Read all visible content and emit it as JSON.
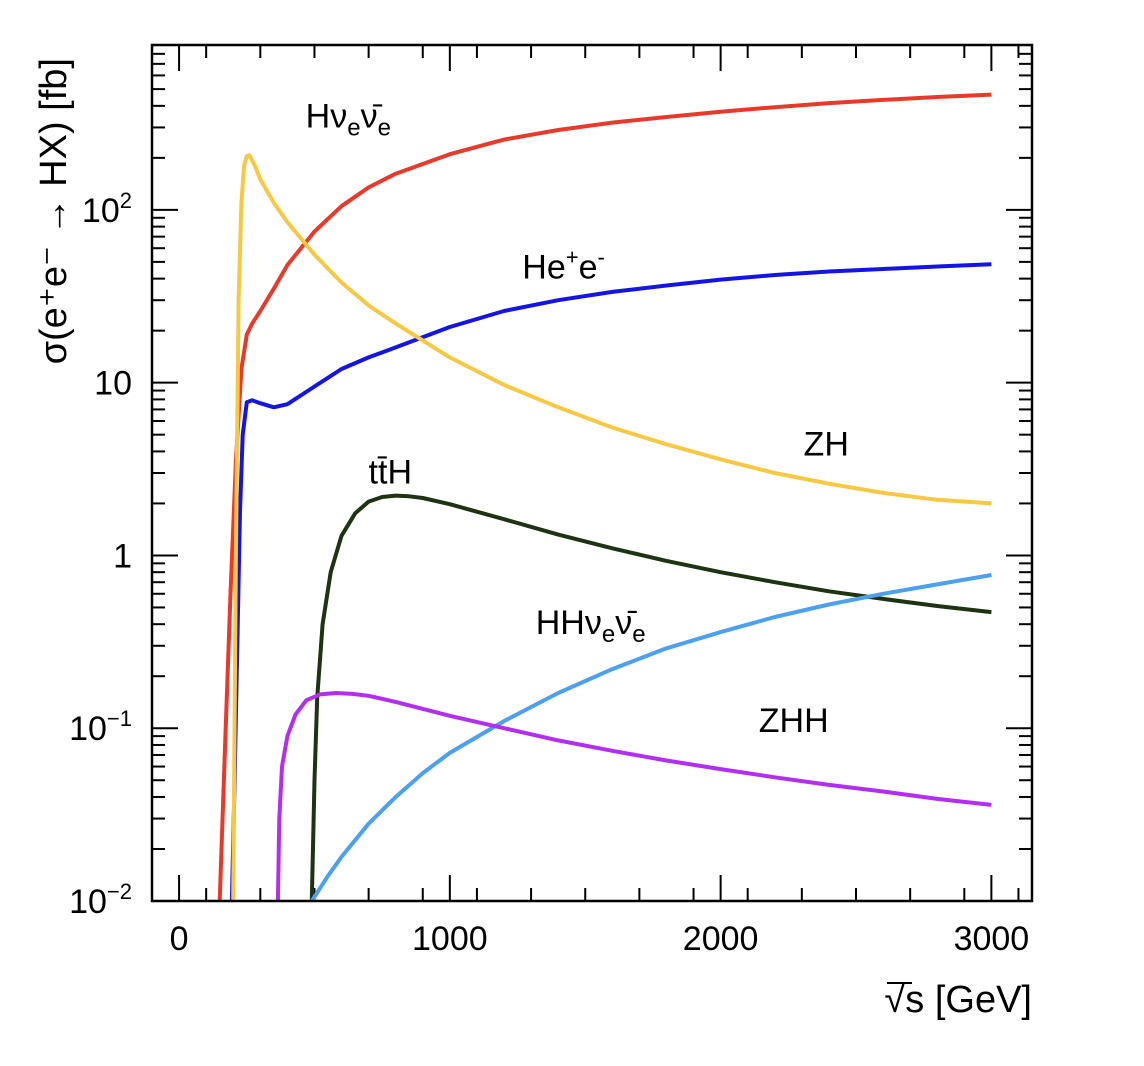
{
  "chart_data": {
    "type": "line",
    "title": "",
    "xlabel": "s [GeV]",
    "xlabel_sqrt": "√",
    "ylabel": "σ(e⁺e⁻ → HX) [fb]",
    "xlim": [
      -100,
      3150
    ],
    "ylim": [
      0.01,
      900
    ],
    "yscale": "log",
    "x_ticks": [
      {
        "value": 0,
        "label": "0"
      },
      {
        "value": 1000,
        "label": "1000"
      },
      {
        "value": 2000,
        "label": "2000"
      },
      {
        "value": 3000,
        "label": "3000"
      }
    ],
    "y_ticks": [
      {
        "value": 0.01,
        "base": "10",
        "exp": "−2"
      },
      {
        "value": 0.1,
        "base": "10",
        "exp": "−1"
      },
      {
        "value": 1,
        "base": "1",
        "exp": ""
      },
      {
        "value": 10,
        "base": "10",
        "exp": ""
      },
      {
        "value": 100,
        "base": "10",
        "exp": "2"
      }
    ],
    "series": [
      {
        "name": "Hνeν̄e",
        "color": "#e8392a",
        "x": [
          150,
          170,
          190,
          210,
          230,
          250,
          270,
          300,
          350,
          400,
          500,
          600,
          700,
          800,
          1000,
          1200,
          1400,
          1600,
          1800,
          2000,
          2200,
          2400,
          2600,
          2800,
          3000
        ],
        "y": [
          0.01,
          0.08,
          0.6,
          3.5,
          12,
          19,
          22,
          26,
          35,
          48,
          75,
          105,
          135,
          162,
          210,
          255,
          290,
          320,
          345,
          370,
          393,
          415,
          433,
          450,
          465
        ]
      },
      {
        "name": "He⁺e⁻",
        "color": "#1414e6",
        "x": [
          195,
          205,
          215,
          225,
          235,
          250,
          270,
          300,
          350,
          400,
          500,
          600,
          700,
          800,
          1000,
          1200,
          1400,
          1600,
          1800,
          2000,
          2200,
          2400,
          2600,
          2800,
          3000
        ],
        "y": [
          0.01,
          0.05,
          0.3,
          1.8,
          5.0,
          7.7,
          7.9,
          7.6,
          7.2,
          7.5,
          9.5,
          12,
          14,
          16,
          21,
          26,
          30,
          33.5,
          36.5,
          39.5,
          42,
          44,
          45.5,
          47,
          48.5
        ]
      },
      {
        "name": "ZH",
        "color": "#f7c843",
        "x": [
          200,
          210,
          220,
          230,
          240,
          250,
          260,
          280,
          300,
          350,
          400,
          500,
          600,
          700,
          800,
          1000,
          1200,
          1400,
          1600,
          1800,
          2000,
          2200,
          2400,
          2600,
          2800,
          3000
        ],
        "y": [
          0.01,
          1.0,
          30,
          110,
          180,
          205,
          207,
          180,
          150,
          110,
          85,
          55,
          38,
          28,
          22,
          14,
          9.7,
          7.2,
          5.5,
          4.4,
          3.6,
          3.0,
          2.6,
          2.3,
          2.1,
          2.0
        ]
      },
      {
        "name": "tt̄H",
        "color": "#1e3312",
        "x": [
          490,
          500,
          510,
          530,
          560,
          600,
          650,
          700,
          750,
          800,
          850,
          900,
          1000,
          1200,
          1400,
          1600,
          1800,
          2000,
          2200,
          2400,
          2600,
          2800,
          3000
        ],
        "y": [
          0.01,
          0.05,
          0.15,
          0.4,
          0.8,
          1.3,
          1.75,
          2.05,
          2.18,
          2.22,
          2.2,
          2.15,
          1.98,
          1.62,
          1.32,
          1.1,
          0.93,
          0.8,
          0.7,
          0.62,
          0.56,
          0.51,
          0.47
        ]
      },
      {
        "name": "HHνeν̄e",
        "color": "#4ba0f0",
        "x": [
          490,
          550,
          600,
          700,
          800,
          900,
          1000,
          1200,
          1400,
          1600,
          1800,
          2000,
          2200,
          2400,
          2600,
          2800,
          3000
        ],
        "y": [
          0.01,
          0.014,
          0.018,
          0.028,
          0.04,
          0.055,
          0.072,
          0.11,
          0.16,
          0.22,
          0.29,
          0.36,
          0.44,
          0.52,
          0.6,
          0.68,
          0.77
        ]
      },
      {
        "name": "ZHH",
        "color": "#b32ff0",
        "x": [
          365,
          370,
          380,
          400,
          430,
          470,
          520,
          580,
          640,
          700,
          800,
          1000,
          1200,
          1400,
          1600,
          1800,
          2000,
          2200,
          2400,
          2600,
          2800,
          3000
        ],
        "y": [
          0.01,
          0.03,
          0.06,
          0.09,
          0.12,
          0.145,
          0.157,
          0.16,
          0.158,
          0.154,
          0.142,
          0.118,
          0.1,
          0.085,
          0.074,
          0.065,
          0.058,
          0.052,
          0.047,
          0.043,
          0.039,
          0.036
        ]
      }
    ],
    "annotations": [
      {
        "series": "Hνeν̄e",
        "x": 625,
        "y": 300,
        "base": "Hν",
        "sub1": "e",
        "mid": "ν̄",
        "sub2": "e",
        "sup": ""
      },
      {
        "series": "He⁺e⁻",
        "x": 1420,
        "y": 40,
        "base": "He",
        "sup": "+",
        "tail": "e",
        "sup2": "-"
      },
      {
        "series": "ZH",
        "x": 2390,
        "y": 3.8,
        "text": "ZH"
      },
      {
        "series": "tt̄H",
        "x": 780,
        "y": 2.6,
        "text": "tt̄H"
      },
      {
        "series": "HHνeν̄e",
        "x": 1520,
        "y": 0.35,
        "base": "HHν",
        "sub1": "e",
        "mid": "ν̄",
        "sub2": "e"
      },
      {
        "series": "ZHH",
        "x": 2270,
        "y": 0.095,
        "text": "ZHH"
      }
    ]
  }
}
